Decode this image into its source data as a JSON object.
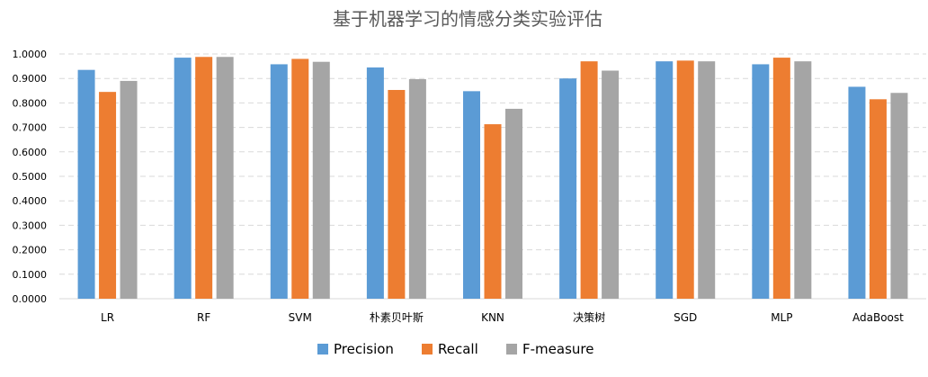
{
  "chart_data": {
    "type": "bar",
    "title": "基于机器学习的情感分类实验评估",
    "xlabel": "",
    "ylabel": "",
    "categories": [
      "LR",
      "RF",
      "SVM",
      "朴素贝叶斯",
      "KNN",
      "决策树",
      "SGD",
      "MLP",
      "AdaBoost"
    ],
    "series": [
      {
        "name": "Precision",
        "color": "#5B9BD5",
        "values": [
          0.935,
          0.985,
          0.958,
          0.945,
          0.848,
          0.9,
          0.97,
          0.958,
          0.866
        ]
      },
      {
        "name": "Recall",
        "color": "#ED7D31",
        "values": [
          0.845,
          0.988,
          0.98,
          0.853,
          0.713,
          0.97,
          0.973,
          0.985,
          0.815
        ]
      },
      {
        "name": "F-measure",
        "color": "#A5A5A5",
        "values": [
          0.89,
          0.988,
          0.968,
          0.897,
          0.776,
          0.932,
          0.97,
          0.97,
          0.841
        ]
      }
    ],
    "ylim": [
      0,
      1.0
    ],
    "yticks": [
      "0.0000",
      "0.1000",
      "0.2000",
      "0.3000",
      "0.4000",
      "0.5000",
      "0.6000",
      "0.7000",
      "0.8000",
      "0.9000",
      "1.0000"
    ],
    "grid": true,
    "legend_position": "bottom"
  }
}
